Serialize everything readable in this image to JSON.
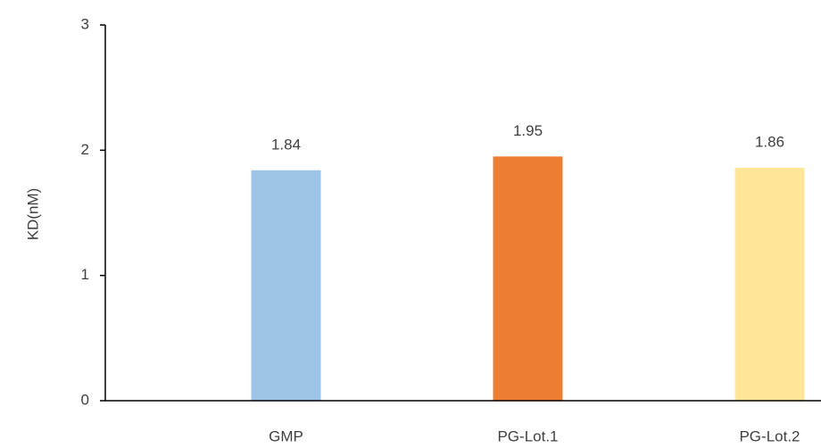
{
  "chart_data": {
    "type": "bar",
    "y_label": "KD(nM)",
    "categories": [
      "GMP",
      "PG-Lot.1",
      "PG-Lot.2"
    ],
    "values": [
      1.84,
      1.95,
      1.86
    ],
    "colors": [
      "#9dc3e6",
      "#ed7d31",
      "#ffe699"
    ],
    "ylim": [
      0,
      3
    ],
    "yticks": [
      0,
      1,
      2,
      3
    ],
    "grid": false
  }
}
